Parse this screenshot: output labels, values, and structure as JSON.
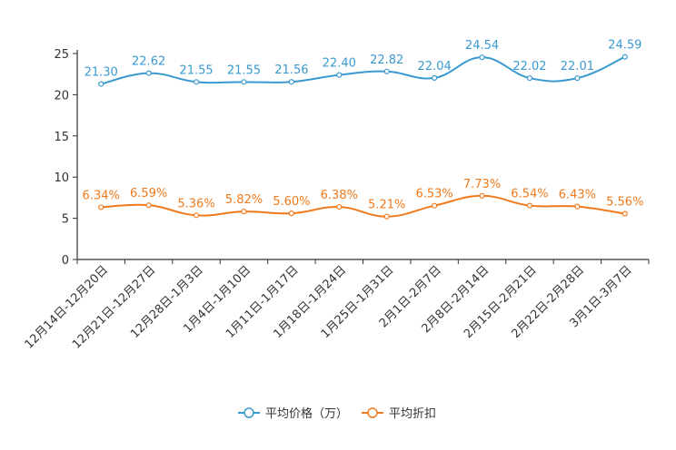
{
  "chart_data": {
    "type": "line",
    "categories": [
      "12月14日-12月20日",
      "12月21日-12月27日",
      "12月28日-1月3日",
      "1月4日-1月10日",
      "1月11日-1月17日",
      "1月18日-1月24日",
      "1月25日-1月31日",
      "2月1日-2月7日",
      "2月8日-2月14日",
      "2月15日-2月21日",
      "2月22日-2月28日",
      "3月1日-3月7日"
    ],
    "ylim": [
      0,
      25
    ],
    "yticks": [
      0,
      5,
      10,
      15,
      20,
      25
    ],
    "series": [
      {
        "name": "平均价格（万）",
        "color": "#3a9ad0",
        "values": [
          21.3,
          22.62,
          21.55,
          21.55,
          21.56,
          22.4,
          22.82,
          22.04,
          24.54,
          22.02,
          22.01,
          24.59
        ],
        "labels": [
          "21.30",
          "22.62",
          "21.55",
          "21.55",
          "21.56",
          "22.40",
          "22.82",
          "22.04",
          "24.54",
          "22.02",
          "22.01",
          "24.59"
        ]
      },
      {
        "name": "平均折扣",
        "color": "#f07a1c",
        "values": [
          6.34,
          6.59,
          5.36,
          5.82,
          5.6,
          6.38,
          5.21,
          6.53,
          7.73,
          6.54,
          6.43,
          5.56
        ],
        "labels": [
          "6.34%",
          "6.59%",
          "5.36%",
          "5.82%",
          "5.60%",
          "6.38%",
          "5.21%",
          "6.53%",
          "7.73%",
          "6.54%",
          "6.43%",
          "5.56%"
        ]
      }
    ],
    "legend_position": "bottom-center",
    "grid": false
  }
}
